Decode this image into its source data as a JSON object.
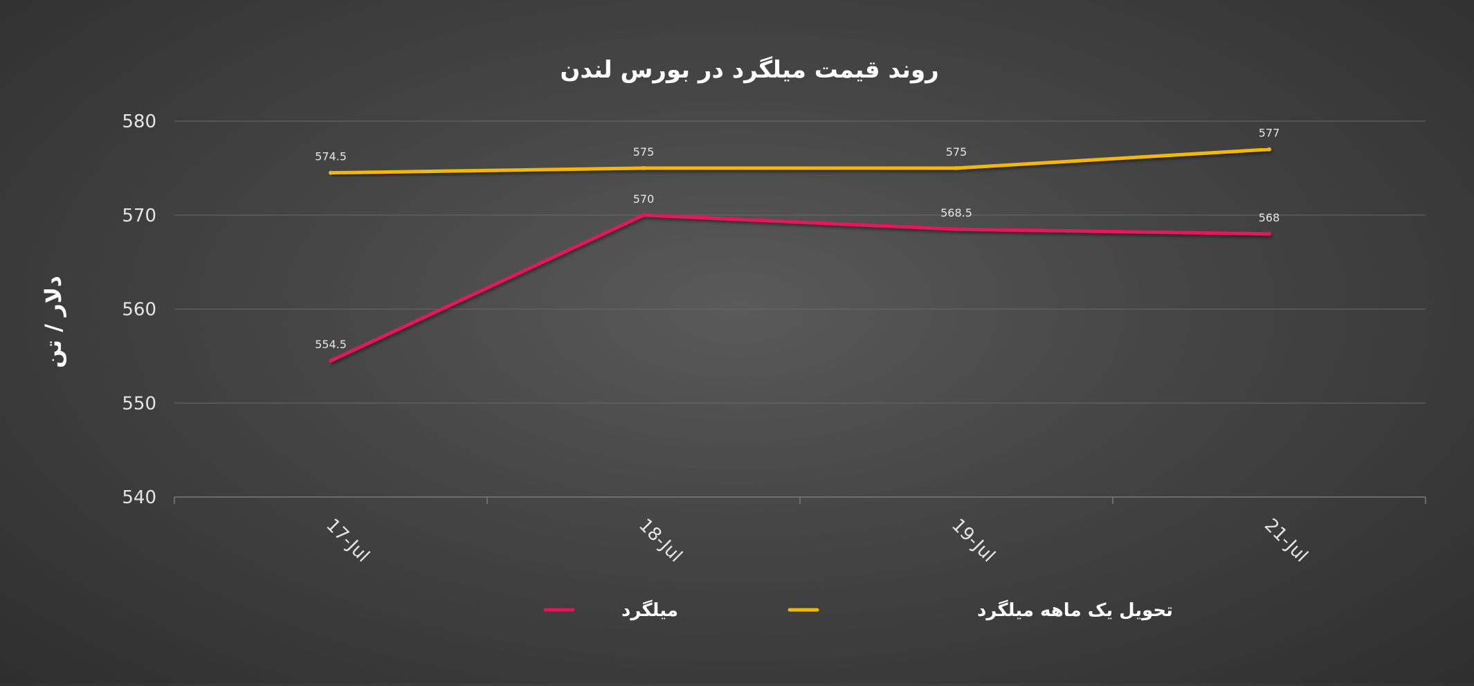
{
  "chart_data": {
    "type": "line",
    "title": "روند  قیمت میلگرد در بورس لندن",
    "ylabel": "دلار / تن",
    "xlabel": "",
    "categories": [
      "17-Jul",
      "18-Jul",
      "19-Jul",
      "21-Jul"
    ],
    "ylim": [
      540,
      580
    ],
    "yticks": [
      540,
      550,
      560,
      570,
      580
    ],
    "grid": true,
    "legend_position": "bottom",
    "series": [
      {
        "name": "میلگرد",
        "color": "#e8125c",
        "values": [
          554.5,
          570,
          568.5,
          568
        ],
        "labels": [
          "554.5",
          "570",
          "568.5",
          "568"
        ]
      },
      {
        "name": "تحویل یک ماهه میلگرد",
        "color": "#f5b800",
        "values": [
          574.5,
          575,
          575,
          577
        ],
        "labels": [
          "574.5",
          "575",
          "575",
          "577"
        ]
      }
    ]
  }
}
